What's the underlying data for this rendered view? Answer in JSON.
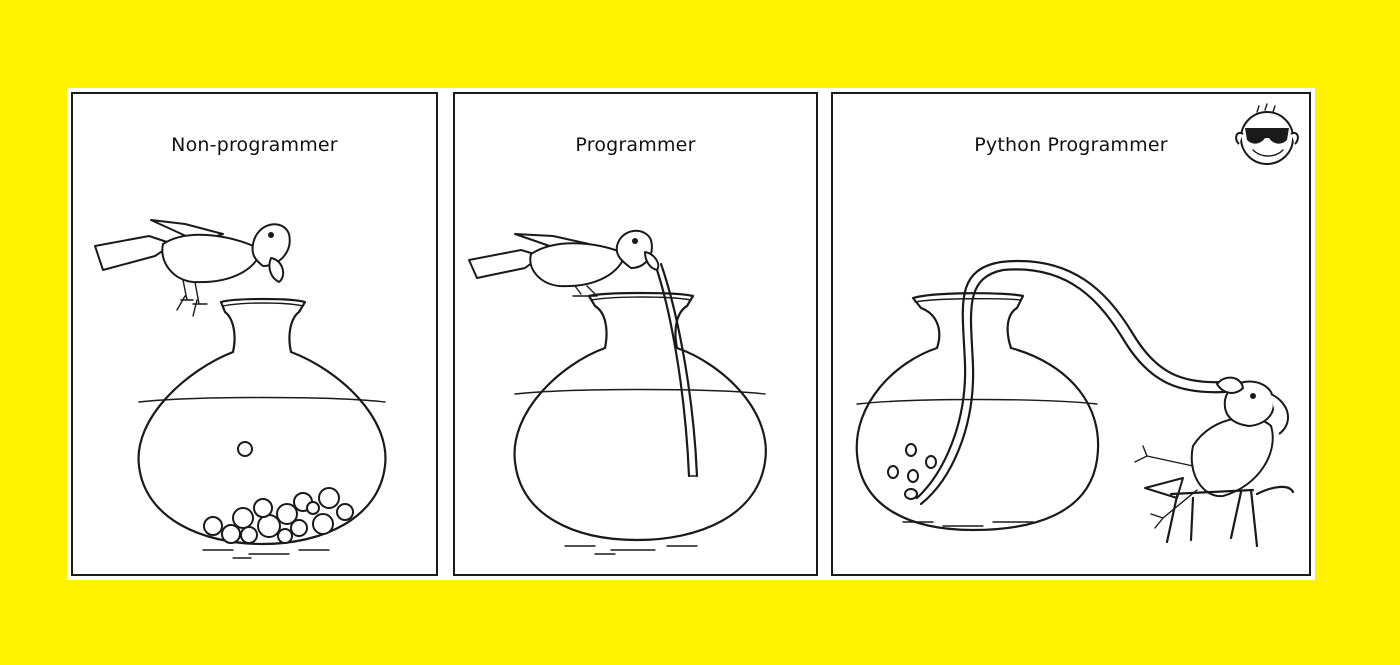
{
  "panels": [
    {
      "caption": "Non-programmer"
    },
    {
      "caption": "Programmer"
    },
    {
      "caption": "Python Programmer"
    }
  ],
  "colors": {
    "background": "#fff200",
    "ink": "#1a1a1a",
    "paper": "#ffffff"
  },
  "icons": [
    "bird",
    "water-pot",
    "pebbles",
    "drinking-straw",
    "cool-face-sunglasses",
    "chair"
  ]
}
